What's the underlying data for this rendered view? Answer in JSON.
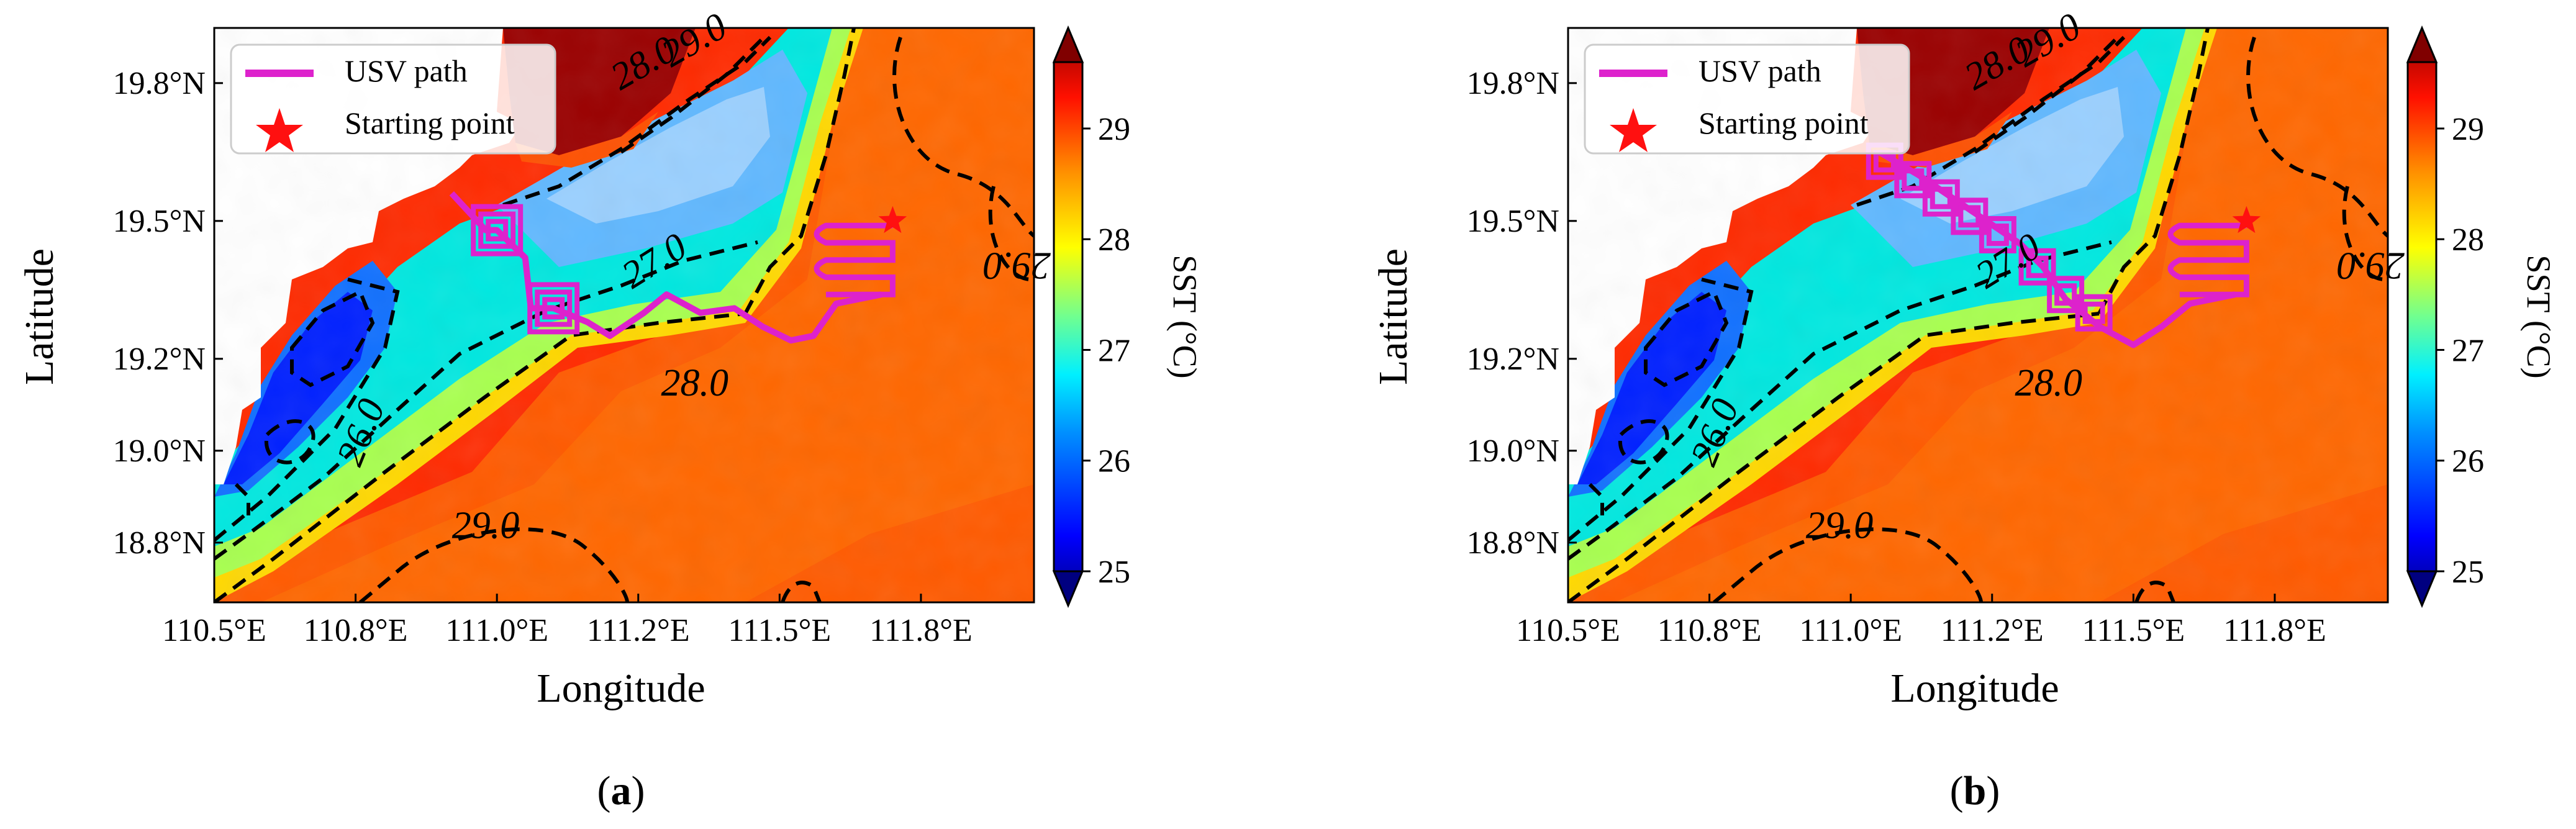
{
  "panels": [
    {
      "id": "a",
      "caption_letter": "a",
      "legend": {
        "path_label": "USV path",
        "start_label": "Starting point"
      },
      "path": [
        [
          110.92,
          19.56
        ],
        [
          110.98,
          19.48
        ],
        [
          111.0,
          19.48
        ],
        [
          111.05,
          19.42
        ],
        [
          111.06,
          19.31
        ],
        [
          111.1,
          19.31
        ],
        [
          111.16,
          19.28
        ],
        [
          111.2,
          19.25
        ],
        [
          111.26,
          19.3
        ],
        [
          111.3,
          19.34
        ],
        [
          111.36,
          19.3
        ],
        [
          111.42,
          19.31
        ],
        [
          111.47,
          19.27
        ],
        [
          111.52,
          19.24
        ],
        [
          111.56,
          19.25
        ],
        [
          111.6,
          19.32
        ],
        [
          111.68,
          19.34
        ]
      ],
      "loops": [
        {
          "lon": 111.0,
          "lat": 19.48,
          "turns": 3
        },
        {
          "lon": 111.1,
          "lat": 19.31,
          "turns": 3
        }
      ],
      "sweep": {
        "lon_start": 111.56,
        "lon_end": 111.7,
        "lat_top": 19.49,
        "lat_bottom": 19.34,
        "rows": 5
      },
      "start": [
        111.7,
        19.5
      ]
    },
    {
      "id": "b",
      "caption_letter": "b",
      "legend": {
        "path_label": "USV path",
        "start_label": "Starting point"
      },
      "path": [
        [
          111.05,
          19.65
        ],
        [
          111.12,
          19.6
        ],
        [
          111.18,
          19.55
        ],
        [
          111.24,
          19.5
        ],
        [
          111.3,
          19.45
        ],
        [
          111.34,
          19.4
        ],
        [
          111.38,
          19.33
        ],
        [
          111.44,
          19.27
        ],
        [
          111.5,
          19.23
        ],
        [
          111.55,
          19.27
        ],
        [
          111.6,
          19.32
        ],
        [
          111.68,
          19.34
        ]
      ],
      "loops": [
        {
          "lon": 111.06,
          "lat": 19.63,
          "turns": 2
        },
        {
          "lon": 111.11,
          "lat": 19.59,
          "turns": 2
        },
        {
          "lon": 111.16,
          "lat": 19.55,
          "turns": 2
        },
        {
          "lon": 111.21,
          "lat": 19.51,
          "turns": 2
        },
        {
          "lon": 111.26,
          "lat": 19.47,
          "turns": 2
        },
        {
          "lon": 111.33,
          "lat": 19.4,
          "turns": 2
        },
        {
          "lon": 111.38,
          "lat": 19.34,
          "turns": 2
        },
        {
          "lon": 111.43,
          "lat": 19.3,
          "turns": 2
        }
      ],
      "sweep": {
        "lon_start": 111.56,
        "lon_end": 111.7,
        "lat_top": 19.49,
        "lat_bottom": 19.34,
        "rows": 5
      },
      "start": [
        111.7,
        19.5
      ]
    }
  ],
  "axes": {
    "xlabel": "Longitude",
    "ylabel": "Latitude",
    "xlim": [
      110.5,
      111.95
    ],
    "ylim": [
      18.67,
      19.92
    ],
    "xticks": [
      {
        "value": 110.5,
        "label": "110.5°E"
      },
      {
        "value": 110.75,
        "label": "110.8°E"
      },
      {
        "value": 111.0,
        "label": "111.0°E"
      },
      {
        "value": 111.25,
        "label": "111.2°E"
      },
      {
        "value": 111.5,
        "label": "111.5°E"
      },
      {
        "value": 111.75,
        "label": "111.8°E"
      }
    ],
    "yticks": [
      {
        "value": 18.8,
        "label": "18.8°N"
      },
      {
        "value": 19.0,
        "label": "19.0°N"
      },
      {
        "value": 19.2,
        "label": "19.2°N"
      },
      {
        "value": 19.5,
        "label": "19.5°N"
      },
      {
        "value": 19.8,
        "label": "19.8°N"
      }
    ]
  },
  "colorbar": {
    "label": "SST (°C)",
    "range": [
      25,
      29.6
    ],
    "ticks": [
      {
        "value": 25,
        "label": "25"
      },
      {
        "value": 26,
        "label": "26"
      },
      {
        "value": 27,
        "label": "27"
      },
      {
        "value": 28,
        "label": "28"
      },
      {
        "value": 29,
        "label": "29"
      }
    ],
    "colors": [
      "#00008f",
      "#0000ff",
      "#0080ff",
      "#00ffff",
      "#80ff80",
      "#ffff00",
      "#ff8000",
      "#ff0000",
      "#800000"
    ]
  },
  "contour_labels": [
    {
      "text": "26.0",
      "lon": 110.78,
      "lat": 19.03,
      "angle": -68
    },
    {
      "text": "27.0",
      "lon": 111.29,
      "lat": 19.39,
      "angle": -32
    },
    {
      "text": "28.0",
      "lon": 111.35,
      "lat": 19.12,
      "angle": 0
    },
    {
      "text": "29.0",
      "lon": 110.98,
      "lat": 18.81,
      "angle": 0
    },
    {
      "text": "28.0",
      "lon": 111.27,
      "lat": 19.82,
      "angle": -30
    },
    {
      "text": "29.0",
      "lon": 111.36,
      "lat": 19.87,
      "angle": -30
    },
    {
      "text": "29.0",
      "lon": 111.92,
      "lat": 19.43,
      "angle": 180
    }
  ],
  "figure_captions": [
    "(a)",
    "(b)"
  ]
}
